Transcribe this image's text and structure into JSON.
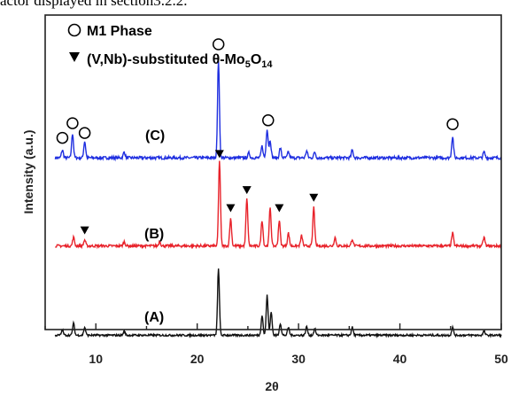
{
  "page_caption": "actor displayed in section3.2.2.",
  "chart_data": {
    "type": "line",
    "xlabel": "2θ",
    "ylabel": "Intensity (a.u.)",
    "xlim": [
      5,
      50
    ],
    "x_ticks": [
      10,
      20,
      30,
      40,
      50
    ],
    "legend": [
      {
        "marker": "circle",
        "label": "M1 Phase"
      },
      {
        "marker": "triangle",
        "label_main": "(V,Nb)-substituted θ-Mo",
        "sub1": "5",
        "mid": "O",
        "sub2": "14"
      }
    ],
    "series": [
      {
        "name": "(C)",
        "color": "#1f2fe0",
        "baseline": 0.1,
        "peaks": [
          [
            6.7,
            0.08
          ],
          [
            7.7,
            0.25
          ],
          [
            8.9,
            0.17
          ],
          [
            12.8,
            0.06
          ],
          [
            22.1,
            1.0
          ],
          [
            25.1,
            0.05
          ],
          [
            26.4,
            0.12
          ],
          [
            26.9,
            0.3
          ],
          [
            27.2,
            0.18
          ],
          [
            28.2,
            0.1
          ],
          [
            29.0,
            0.06
          ],
          [
            30.8,
            0.07
          ],
          [
            31.6,
            0.06
          ],
          [
            35.3,
            0.08
          ],
          [
            45.2,
            0.22
          ],
          [
            48.3,
            0.06
          ]
        ],
        "markers": [
          {
            "x": 6.7,
            "y": 0.24,
            "type": "circle"
          },
          {
            "x": 7.7,
            "y": 0.39,
            "type": "circle"
          },
          {
            "x": 8.9,
            "y": 0.29,
            "type": "circle"
          },
          {
            "x": 22.1,
            "y": 1.2,
            "type": "circle"
          },
          {
            "x": 27.0,
            "y": 0.42,
            "type": "circle"
          },
          {
            "x": 45.2,
            "y": 0.38,
            "type": "circle"
          }
        ]
      },
      {
        "name": "(B)",
        "color": "#e8222a",
        "baseline": 0.1,
        "peaks": [
          [
            7.8,
            0.1
          ],
          [
            8.9,
            0.07
          ],
          [
            12.8,
            0.05
          ],
          [
            16.3,
            0.05
          ],
          [
            22.2,
            1.0
          ],
          [
            23.3,
            0.32
          ],
          [
            24.9,
            0.55
          ],
          [
            26.4,
            0.3
          ],
          [
            27.2,
            0.45
          ],
          [
            28.1,
            0.3
          ],
          [
            29.0,
            0.15
          ],
          [
            30.3,
            0.12
          ],
          [
            31.5,
            0.45
          ],
          [
            33.6,
            0.1
          ],
          [
            35.3,
            0.08
          ],
          [
            45.2,
            0.15
          ],
          [
            48.3,
            0.1
          ]
        ],
        "markers": [
          {
            "x": 8.9,
            "y": 0.22,
            "type": "triangle"
          },
          {
            "x": 22.2,
            "y": 1.11,
            "type": "triangle"
          },
          {
            "x": 23.3,
            "y": 0.48,
            "type": "triangle"
          },
          {
            "x": 24.9,
            "y": 0.69,
            "type": "triangle"
          },
          {
            "x": 28.1,
            "y": 0.48,
            "type": "triangle"
          },
          {
            "x": 31.5,
            "y": 0.6,
            "type": "triangle"
          }
        ]
      },
      {
        "name": "(A)",
        "color": "#111111",
        "baseline": 0.06,
        "peaks": [
          [
            6.7,
            0.08
          ],
          [
            7.8,
            0.18
          ],
          [
            8.9,
            0.12
          ],
          [
            12.8,
            0.06
          ],
          [
            22.1,
            1.0
          ],
          [
            26.4,
            0.3
          ],
          [
            26.9,
            0.6
          ],
          [
            27.3,
            0.35
          ],
          [
            28.2,
            0.18
          ],
          [
            29.0,
            0.12
          ],
          [
            30.8,
            0.13
          ],
          [
            31.6,
            0.1
          ],
          [
            35.3,
            0.12
          ],
          [
            45.2,
            0.12
          ],
          [
            48.3,
            0.06
          ]
        ]
      }
    ]
  }
}
